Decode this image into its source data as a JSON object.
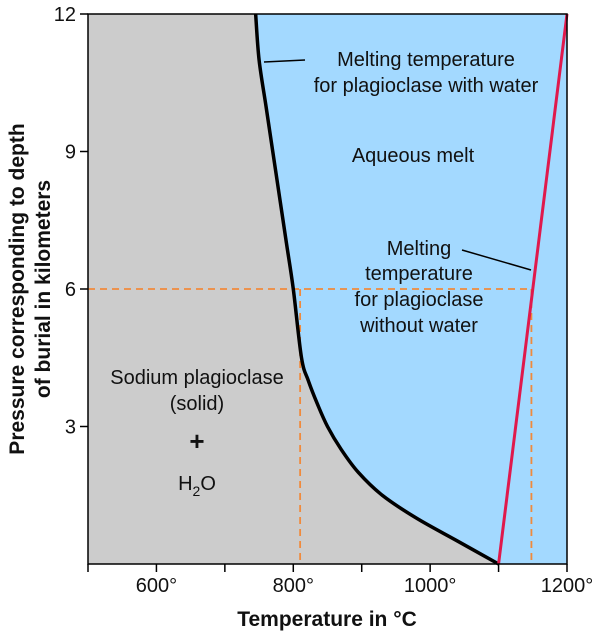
{
  "chart_data": {
    "type": "line",
    "title": "",
    "xlabel": "Temperature in °C",
    "ylabel_line1": "Pressure corresponding to depth",
    "ylabel_line2": "of burial in kilometers",
    "xlim": [
      500,
      1200
    ],
    "ylim": [
      0,
      12
    ],
    "xticks": [
      {
        "value": 500,
        "label": ""
      },
      {
        "value": 600,
        "label": "600°"
      },
      {
        "value": 700,
        "label": ""
      },
      {
        "value": 800,
        "label": "800°"
      },
      {
        "value": 900,
        "label": ""
      },
      {
        "value": 1000,
        "label": "1000°"
      },
      {
        "value": 1100,
        "label": ""
      },
      {
        "value": 1200,
        "label": "1200°"
      }
    ],
    "yticks": [
      {
        "value": 3,
        "label": "3"
      },
      {
        "value": 6,
        "label": "6"
      },
      {
        "value": 9,
        "label": "9"
      },
      {
        "value": 12,
        "label": "12"
      }
    ],
    "series": [
      {
        "name": "Melting temperature for plagioclase with water",
        "color": "#000000",
        "x": [
          1100,
          1040,
          980,
          930,
          895,
          870,
          850,
          835,
          822,
          812,
          800,
          790,
          780,
          770,
          760,
          750,
          745
        ],
        "y": [
          0,
          0.5,
          1.0,
          1.5,
          2.0,
          2.5,
          3.0,
          3.5,
          4.0,
          4.5,
          6.0,
          7.0,
          8.0,
          9.0,
          10.0,
          11.0,
          12.0
        ]
      },
      {
        "name": "Melting temperature for plagioclase without water",
        "color": "#e0194c",
        "x": [
          1100,
          1200
        ],
        "y": [
          0,
          12
        ]
      }
    ],
    "reference_lines": {
      "color": "#f08a3c",
      "y": 6,
      "x_values": [
        810,
        1148
      ]
    },
    "regions": {
      "solid_color": "#cccccc",
      "melt_color": "#a3d9ff"
    },
    "annotations": {
      "wet_melt": [
        "Melting temperature",
        "for plagioclase with water"
      ],
      "aqueous": "Aqueous melt",
      "dry_melt": [
        "Melting",
        "temperature",
        "for plagioclase",
        "without water"
      ],
      "solid": [
        "Sodium plagioclase",
        "(solid)"
      ],
      "plus": "+",
      "water": "H",
      "water_sub": "2",
      "water_end": "O"
    }
  }
}
